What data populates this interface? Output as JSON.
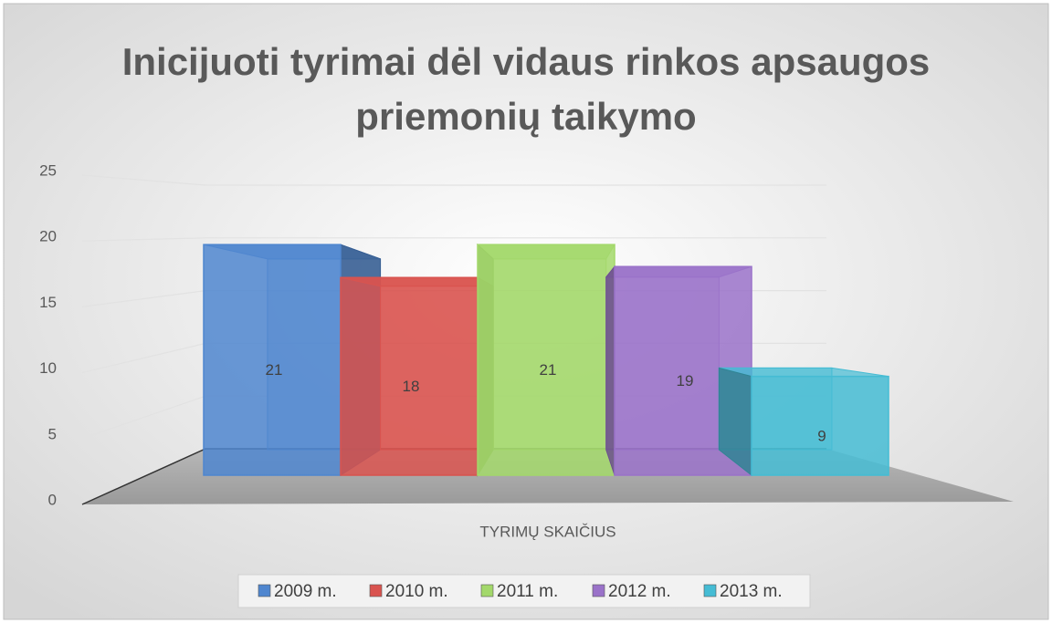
{
  "chart_data": {
    "type": "bar3d",
    "title": "Inicijuoti tyrimai dėl vidaus rinkos apsaugos priemonių taikymo",
    "categories": [
      "TYRIMŲ SKAIČIUS"
    ],
    "series": [
      {
        "name": "2009 m.",
        "color": "#4f86cf",
        "values": [
          21
        ]
      },
      {
        "name": "2010 m.",
        "color": "#d9534f",
        "values": [
          18
        ]
      },
      {
        "name": "2011 m.",
        "color": "#a3d86b",
        "values": [
          21
        ]
      },
      {
        "name": "2012 m.",
        "color": "#9a72c9",
        "values": [
          19
        ]
      },
      {
        "name": "2013 m.",
        "color": "#45bcd4",
        "values": [
          9
        ]
      }
    ],
    "ylim": [
      0,
      25
    ],
    "yticks": [
      0,
      5,
      10,
      15,
      20,
      25
    ],
    "grid": true,
    "data_labels": true,
    "legend": "bottom"
  }
}
